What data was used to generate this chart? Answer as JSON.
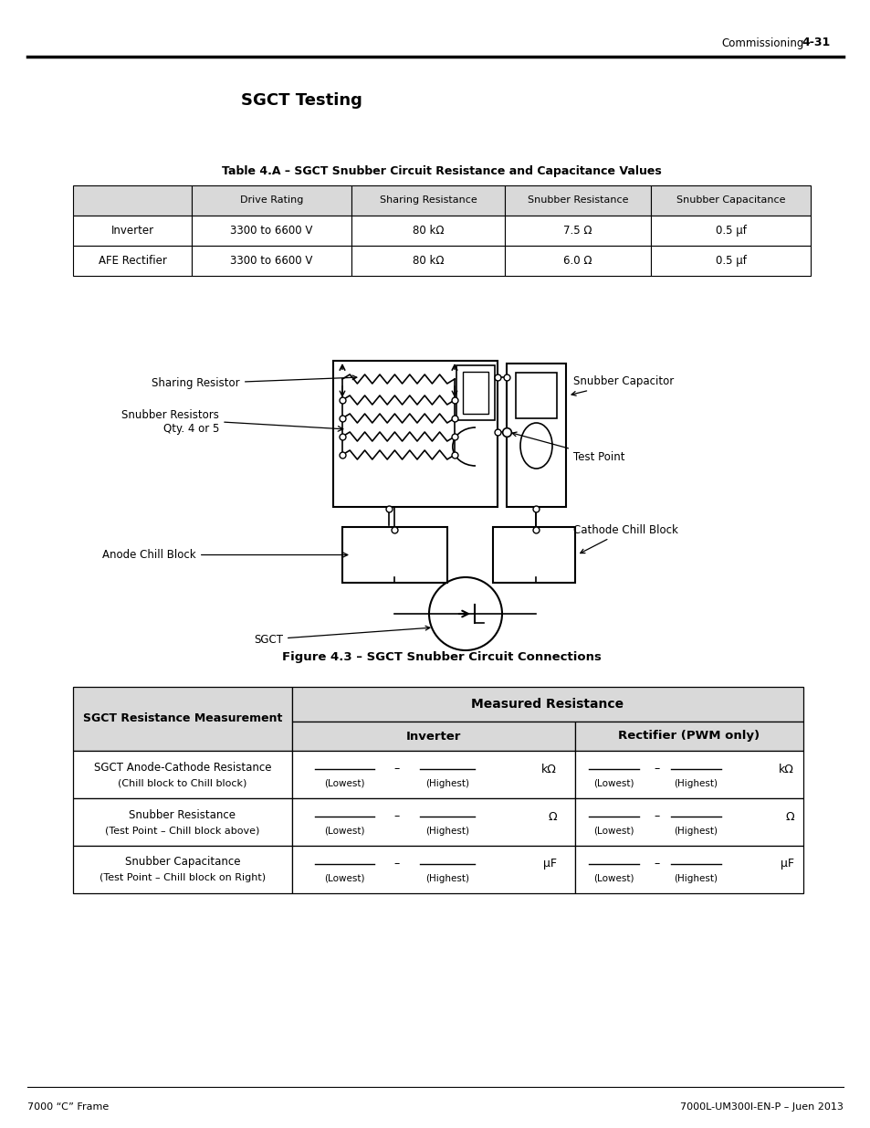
{
  "page_title": "SGCT Testing",
  "header_right_label": "Commissioning",
  "header_right_page": "4-31",
  "footer_left": "7000 “C” Frame",
  "footer_right": "7000L-UM300I-EN-P – Juen 2013",
  "table1_title": "Table 4.A – SGCT Snubber Circuit Resistance and Capacitance Values",
  "table1_headers": [
    "",
    "Drive Rating",
    "Sharing Resistance",
    "Snubber Resistance",
    "Snubber Capacitance"
  ],
  "table1_rows": [
    [
      "Inverter",
      "3300 to 6600 V",
      "80 kΩ",
      "7.5 Ω",
      "0.5 μf"
    ],
    [
      "AFE Rectifier",
      "3300 to 6600 V",
      "80 kΩ",
      "6.0 Ω",
      "0.5 μf"
    ]
  ],
  "figure_caption": "Figure 4.3 – SGCT Snubber Circuit Connections",
  "diagram_labels": {
    "sharing_resistor": "Sharing Resistor",
    "snubber_resistors_1": "Snubber Resistors",
    "snubber_resistors_2": "Qty. 4 or 5",
    "anode_chill": "Anode Chill Block",
    "sgct": "SGCT",
    "snubber_cap": "Snubber Capacitor",
    "test_point": "Test Point",
    "cathode_chill": "Cathode Chill Block"
  },
  "table2_title_left": "SGCT Resistance Measurement",
  "table2_title_right": "Measured Resistance",
  "table2_col1": "Inverter",
  "table2_col2": "Rectifier (PWM only)",
  "table2_rows": [
    {
      "label_line1": "SGCT Anode-Cathode Resistance",
      "label_line2": "(Chill block to Chill block)",
      "unit": "kΩ"
    },
    {
      "label_line1": "Snubber Resistance",
      "label_line2": "(Test Point – Chill block above)",
      "unit": "Ω"
    },
    {
      "label_line1": "Snubber Capacitance",
      "label_line2": "(Test Point – Chill block on Right)",
      "unit": "μF"
    }
  ],
  "bg_color": "#ffffff",
  "table_header_bg": "#d9d9d9",
  "table_border_color": "#000000"
}
